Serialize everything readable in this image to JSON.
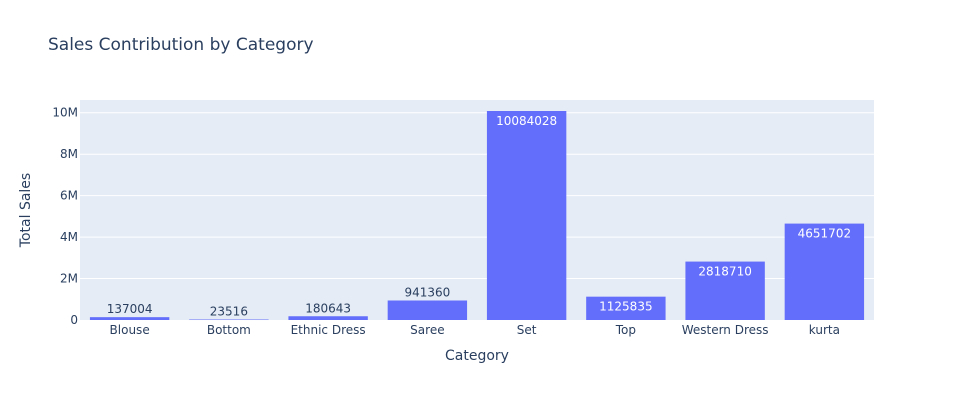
{
  "chart_data": {
    "type": "bar",
    "title": "Sales Contribution by Category",
    "xlabel": "Category",
    "ylabel": "Total Sales",
    "categories": [
      "Blouse",
      "Bottom",
      "Ethnic Dress",
      "Saree",
      "Set",
      "Top",
      "Western Dress",
      "kurta"
    ],
    "values": [
      137004,
      23516,
      180643,
      941360,
      10084028,
      1125835,
      2818710,
      4651702
    ],
    "ylim": [
      0,
      10614766
    ],
    "yticks": [
      0,
      2000000,
      4000000,
      6000000,
      8000000,
      10000000
    ],
    "ytick_labels": [
      "0",
      "2M",
      "4M",
      "6M",
      "8M",
      "10M"
    ],
    "grid": true,
    "legend": "none",
    "colors": {
      "bar": "#636efa",
      "plot_bg": "#e5ecf6",
      "grid": "#ffffff",
      "text": "#2a3f5f",
      "label_inside": "#ffffff"
    }
  }
}
